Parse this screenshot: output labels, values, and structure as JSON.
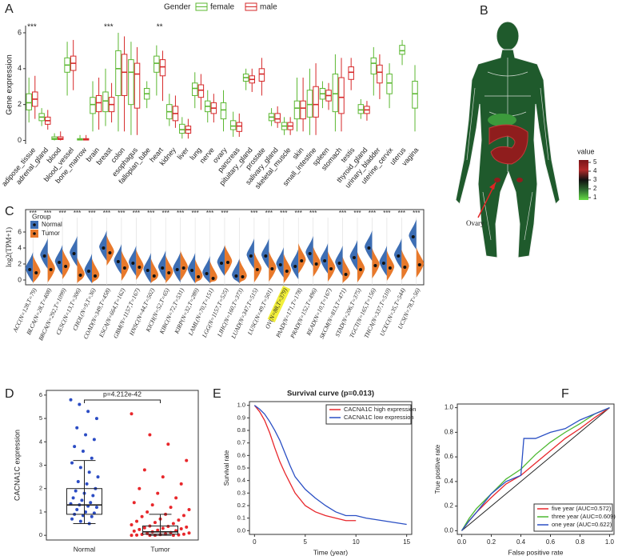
{
  "panel_labels": [
    "A",
    "B",
    "C",
    "D",
    "E",
    "F"
  ],
  "chart_data": [
    {
      "type": "boxplot",
      "legend_title": "Gender",
      "y_label": "Gene expression",
      "categories": [
        "adipose_tissue",
        "adrenal_gland",
        "blood",
        "blood_vessel",
        "bone_marrow",
        "brain",
        "breast",
        "colon",
        "esophagus",
        "fallopian_tube",
        "heart",
        "kidney",
        "liver",
        "lung",
        "nerve",
        "ovary",
        "pancreas",
        "pituitary_gland",
        "prostate",
        "salivary_gland",
        "skeletal_muscle",
        "skin",
        "small_intestine",
        "spleen",
        "stomach",
        "testis",
        "thyroid_gland",
        "urinary_bladder",
        "uterine_cervix",
        "uterus",
        "vagina"
      ],
      "significance": [
        "***",
        null,
        null,
        null,
        null,
        null,
        "***",
        null,
        null,
        null,
        "**",
        null,
        null,
        null,
        null,
        null,
        null,
        null,
        null,
        null,
        null,
        null,
        null,
        null,
        null,
        null,
        null,
        null,
        null,
        null,
        null
      ],
      "series": [
        {
          "name": "female",
          "color": "#5cb832",
          "boxes": [
            [
              1.0,
              1.7,
              2.1,
              2.6,
              3.5
            ],
            [
              0.8,
              1.1,
              1.3,
              1.5,
              1.8
            ],
            [
              0,
              0.05,
              0.1,
              0.2,
              0.4
            ],
            [
              2.5,
              3.8,
              4.2,
              4.6,
              5.5
            ],
            [
              0,
              0.02,
              0.05,
              0.1,
              0.3
            ],
            [
              0.5,
              1.5,
              2.0,
              2.4,
              3.3
            ],
            [
              0.8,
              1.6,
              2.2,
              2.7,
              4.0
            ],
            [
              0.5,
              2.5,
              4.0,
              5.0,
              6.0
            ],
            [
              0.3,
              2.0,
              3.8,
              4.5,
              5.5
            ],
            [
              1.8,
              2.3,
              2.6,
              2.9,
              3.3
            ],
            [
              2.5,
              3.8,
              4.3,
              4.7,
              5.3
            ],
            [
              0.8,
              1.2,
              1.6,
              2.0,
              2.6
            ],
            [
              0.1,
              0.4,
              0.6,
              0.9,
              1.3
            ],
            [
              1.8,
              2.5,
              2.9,
              3.2,
              3.8
            ],
            [
              1.0,
              1.6,
              1.9,
              2.2,
              2.8
            ],
            [
              0.5,
              1.2,
              1.7,
              2.1,
              2.8
            ],
            [
              0.2,
              0.6,
              0.8,
              1.1,
              1.6
            ],
            [
              2.8,
              3.3,
              3.5,
              3.7,
              4.0
            ],
            null,
            [
              0.8,
              1.1,
              1.3,
              1.5,
              1.8
            ],
            [
              0.3,
              0.6,
              0.8,
              1.0,
              1.3
            ],
            [
              0.5,
              1.2,
              1.8,
              2.2,
              3.5
            ],
            [
              0.3,
              1.3,
              2.0,
              2.8,
              4.0
            ],
            [
              1.8,
              2.3,
              2.6,
              2.9,
              3.3
            ],
            [
              0.5,
              1.6,
              2.6,
              3.7,
              4.8
            ],
            null,
            [
              1.2,
              1.5,
              1.7,
              2.0,
              2.3
            ],
            [
              2.5,
              3.7,
              4.3,
              4.6,
              5.2
            ],
            [
              1.8,
              2.6,
              3.2,
              3.7,
              4.3
            ],
            [
              4.2,
              4.8,
              5.0,
              5.3,
              5.6
            ],
            [
              0.5,
              1.8,
              2.6,
              3.3,
              4.2
            ]
          ]
        },
        {
          "name": "male",
          "color": "#d62728",
          "boxes": [
            [
              1.2,
              1.9,
              2.3,
              2.7,
              3.6
            ],
            [
              0.6,
              0.9,
              1.1,
              1.3,
              1.7
            ],
            [
              0,
              0.05,
              0.1,
              0.2,
              0.5
            ],
            [
              2.8,
              3.9,
              4.3,
              4.7,
              5.6
            ],
            [
              0,
              0.02,
              0.05,
              0.1,
              0.3
            ],
            [
              0.6,
              1.6,
              2.1,
              2.5,
              3.5
            ],
            [
              1.0,
              1.6,
              2.0,
              2.4,
              3.2
            ],
            [
              0.5,
              2.5,
              3.8,
              4.8,
              5.8
            ],
            [
              0.3,
              1.8,
              3.7,
              4.3,
              5.2
            ],
            null,
            [
              2.2,
              3.6,
              4.1,
              4.5,
              5.0
            ],
            [
              0.7,
              1.1,
              1.5,
              1.9,
              2.5
            ],
            [
              0.1,
              0.4,
              0.6,
              0.8,
              1.2
            ],
            [
              1.7,
              2.4,
              2.8,
              3.1,
              3.7
            ],
            [
              1.0,
              1.5,
              1.8,
              2.1,
              2.6
            ],
            null,
            [
              0.2,
              0.5,
              0.8,
              1.0,
              1.5
            ],
            [
              2.7,
              3.2,
              3.4,
              3.6,
              4.0
            ],
            [
              2.5,
              3.3,
              3.7,
              4.0,
              4.6
            ],
            [
              0.7,
              1.0,
              1.2,
              1.5,
              1.9
            ],
            [
              0.3,
              0.6,
              0.8,
              1.0,
              1.3
            ],
            [
              0.5,
              1.2,
              1.8,
              2.2,
              3.5
            ],
            [
              0.3,
              1.3,
              2.0,
              3.0,
              4.3
            ],
            [
              1.7,
              2.2,
              2.5,
              2.8,
              3.2
            ],
            [
              0.5,
              1.5,
              2.4,
              3.5,
              4.6
            ],
            [
              2.8,
              3.4,
              3.8,
              4.1,
              4.6
            ],
            [
              1.1,
              1.5,
              1.7,
              1.9,
              2.2
            ],
            [
              2.3,
              3.2,
              3.8,
              4.2,
              4.8
            ],
            null,
            null,
            null
          ]
        }
      ],
      "ylim": [
        -0.2,
        6.4
      ],
      "yticks": [
        0,
        2,
        4,
        6
      ]
    },
    {
      "type": "body_map",
      "legend_title": "value",
      "annotation": "Ovary",
      "colorbar_ticks": [
        1,
        2,
        3,
        4,
        5
      ],
      "colorbar_colors": [
        "#66dd44",
        "#2e6b30",
        "#111111",
        "#b02a2a",
        "#7a1518"
      ]
    },
    {
      "type": "split_violin",
      "legend_title": "Group",
      "y_label": "log2(TPM+1)",
      "categories": [
        "ACC(N=128,T=79)",
        "BLCA(N=28,T=408)",
        "BRCA(N=292,T=1099)",
        "CESC(N=13,T=306)",
        "CHOL(N=9,T=36)",
        "COAD(N=349,T=458)",
        "ESCA(N=664,T=162)",
        "GBM(N=1157,T=167)",
        "HNSC(N=44,T=502)",
        "KICH(N=52,T=65)",
        "KIRC(N=72,T=531)",
        "KIRP(N=32,T=289)",
        "LAML(N=70,T=151)",
        "LGG(N=1157,T=525)",
        "LIHC(N=160,T=373)",
        "LUAD(N=347,T=515)",
        "LUSC(N=49,T=501)",
        "OV(N=88,T=379)",
        "PAAD(N=171,T=178)",
        "PRAD(N=152,T=496)",
        "READ(N=10,T=167)",
        "SKCM(N=813,T=471)",
        "STAD(N=206,T=375)",
        "TGCT(N=165,T=156)",
        "THCA(N=337,T=510)",
        "UCEC(N=35,T=544)",
        "UCS(N=78,T=56)"
      ],
      "highlighted_category": 17,
      "highlight_color": "#f2ef3a",
      "significance": [
        "***",
        "***",
        "***",
        "***",
        "***",
        "***",
        "***",
        "***",
        "***",
        "***",
        "***",
        "***",
        "***",
        "***",
        null,
        "***",
        "***",
        "***",
        "***",
        "***",
        null,
        "***",
        "***",
        "***",
        "***",
        "***",
        "***"
      ],
      "series": [
        {
          "name": "Normal",
          "color": "#3d6eb4",
          "values": [
            1.3,
            3.0,
            2.2,
            3.3,
            1.1,
            4.0,
            2.3,
            2.1,
            1.2,
            1.5,
            1.3,
            1.2,
            0.8,
            2.1,
            0.5,
            3.0,
            3.0,
            1.9,
            1.7,
            3.3,
            2.4,
            2.1,
            2.8,
            4.0,
            2.1,
            3.0,
            5.4
          ]
        },
        {
          "name": "Tumor",
          "color": "#e8792b",
          "values": [
            0.9,
            1.3,
            1.7,
            0.6,
            0.5,
            3.4,
            1.5,
            1.6,
            0.5,
            0.9,
            1.5,
            0.4,
            0.2,
            2.2,
            0.4,
            1.3,
            1.4,
            1.1,
            2.4,
            2.0,
            1.4,
            0.7,
            1.3,
            1.8,
            1.5,
            1.6,
            1.9
          ]
        }
      ],
      "ylim": [
        -0.6,
        8.8
      ],
      "yticks": [
        0,
        2,
        4,
        6
      ]
    },
    {
      "type": "box_jitter",
      "y_label": "CACNA1C expression",
      "annotation": "p=4.212e-42",
      "categories": [
        "Normal",
        "Tumor"
      ],
      "colors": [
        "#2b4cc4",
        "#e8272b"
      ],
      "boxes": [
        [
          0.5,
          0.9,
          1.3,
          2.0,
          3.2
        ],
        [
          0,
          0.05,
          0.15,
          0.4,
          0.9
        ]
      ],
      "points": [
        [
          5.8,
          5.6,
          5.3,
          5.0,
          4.6,
          4.3,
          4.1,
          3.8,
          3.6,
          3.3,
          3.1,
          2.9,
          2.7,
          2.5,
          2.3,
          2.2,
          2.0,
          1.9,
          1.8,
          1.7,
          1.6,
          1.5,
          1.4,
          1.35,
          1.3,
          1.25,
          1.2,
          1.1,
          1.0,
          0.95,
          0.9,
          0.85,
          0.8,
          0.7,
          0.6,
          0.5
        ],
        [
          5.2,
          4.3,
          3.9,
          3.2,
          2.8,
          2.5,
          2.2,
          2.0,
          1.8,
          1.6,
          1.4,
          1.3,
          1.2,
          1.1,
          1.0,
          0.9,
          0.85,
          0.8,
          0.7,
          0.65,
          0.6,
          0.55,
          0.5,
          0.45,
          0.4,
          0.38,
          0.35,
          0.32,
          0.3,
          0.28,
          0.25,
          0.22,
          0.2,
          0.18,
          0.15,
          0.12,
          0.1,
          0.08,
          0.06,
          0.05,
          0.04,
          0.03,
          0.02,
          0.01,
          0,
          0,
          0,
          0
        ]
      ],
      "ylim": [
        -0.2,
        6.2
      ],
      "yticks": [
        0,
        1,
        2,
        3,
        4,
        5,
        6
      ]
    },
    {
      "type": "survival",
      "title": "Survival curve (p=0.013)",
      "x_label": "Time (year)",
      "y_label": "Survival rate",
      "series": [
        {
          "name": "CACNA1C high expression",
          "color": "#e8262b",
          "x": [
            0,
            0.5,
            1,
            1.5,
            2,
            2.5,
            3,
            3.5,
            4,
            5,
            6,
            7,
            8,
            9,
            10
          ],
          "values": [
            1,
            0.95,
            0.88,
            0.78,
            0.66,
            0.55,
            0.46,
            0.38,
            0.3,
            0.2,
            0.15,
            0.12,
            0.1,
            0.08,
            0.08
          ]
        },
        {
          "name": "CACNA1C low expression",
          "color": "#2a4fc4",
          "x": [
            0,
            0.5,
            1,
            1.5,
            2,
            2.5,
            3,
            3.5,
            4,
            5,
            6,
            7,
            8,
            9,
            10,
            11,
            15
          ],
          "values": [
            1,
            0.97,
            0.93,
            0.87,
            0.8,
            0.72,
            0.62,
            0.52,
            0.43,
            0.33,
            0.26,
            0.2,
            0.15,
            0.12,
            0.12,
            0.1,
            0.05
          ]
        }
      ],
      "xlim": [
        -0.5,
        15.5
      ],
      "xticks": [
        0,
        5,
        10,
        15
      ],
      "ylim": [
        -0.03,
        1.03
      ],
      "yticks": [
        {
          "value": 0,
          "label": "0.0"
        },
        0.1,
        0.2,
        0.3,
        0.4,
        0.5,
        0.6,
        0.7,
        0.8,
        0.9,
        {
          "value": 1,
          "label": "1.0"
        }
      ]
    },
    {
      "type": "roc",
      "x_label": "False positive rate",
      "y_label": "True positive rate",
      "series": [
        {
          "name": "five year (AUC=0.572)",
          "color": "#e8262b",
          "x": [
            0,
            0.05,
            0.1,
            0.2,
            0.3,
            0.4,
            0.5,
            0.6,
            0.7,
            0.8,
            0.9,
            1
          ],
          "values": [
            0,
            0.08,
            0.15,
            0.27,
            0.38,
            0.45,
            0.55,
            0.65,
            0.75,
            0.83,
            0.92,
            1
          ]
        },
        {
          "name": "three year (AUC=0.609)",
          "color": "#4cb830",
          "x": [
            0,
            0.05,
            0.1,
            0.2,
            0.3,
            0.4,
            0.5,
            0.6,
            0.7,
            0.8,
            0.9,
            1
          ],
          "values": [
            0,
            0.1,
            0.18,
            0.3,
            0.42,
            0.5,
            0.62,
            0.72,
            0.8,
            0.87,
            0.95,
            1
          ]
        },
        {
          "name": "one year (AUC=0.622)",
          "color": "#2a4fc4",
          "x": [
            0,
            0.05,
            0.1,
            0.2,
            0.3,
            0.4,
            0.42,
            0.5,
            0.6,
            0.7,
            0.8,
            0.9,
            1
          ],
          "values": [
            0,
            0.08,
            0.15,
            0.3,
            0.4,
            0.45,
            0.75,
            0.75,
            0.8,
            0.83,
            0.9,
            0.95,
            1
          ]
        }
      ],
      "xlim": [
        -0.03,
        1.03
      ],
      "xticks": [
        {
          "value": 0,
          "label": "0.0"
        },
        0.2,
        0.4,
        0.6,
        0.8,
        {
          "value": 1,
          "label": "1.0"
        }
      ],
      "ylim": [
        -0.03,
        1.03
      ],
      "yticks": [
        {
          "value": 0,
          "label": "0.0"
        },
        0.2,
        0.4,
        0.6,
        0.8,
        {
          "value": 1,
          "label": "1.0"
        }
      ]
    }
  ]
}
